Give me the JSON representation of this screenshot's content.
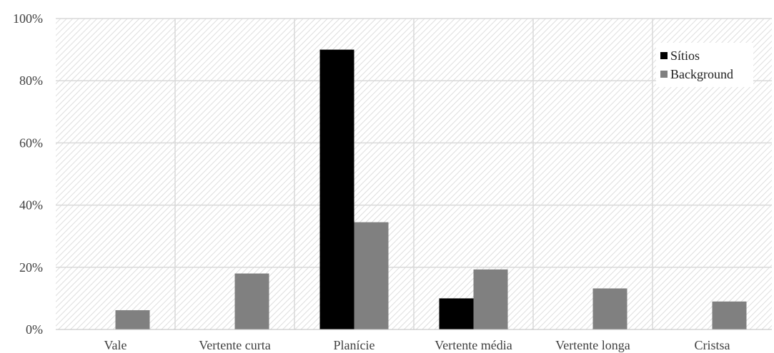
{
  "chart_data": {
    "type": "bar",
    "categories": [
      "Vale",
      "Vertente curta",
      "Planície",
      "Vertente média",
      "Vertente longa",
      "Cristsa"
    ],
    "series": [
      {
        "name": "Sítios",
        "values": [
          0,
          0,
          90,
          10,
          0,
          0
        ],
        "color": "#000000"
      },
      {
        "name": "Background",
        "values": [
          6.2,
          18,
          34.5,
          19.3,
          13.2,
          9.0
        ],
        "color": "#808080"
      }
    ],
    "yticks": [
      "0%",
      "20%",
      "40%",
      "60%",
      "80%",
      "100%"
    ],
    "ylim": [
      0,
      100
    ],
    "grid": true,
    "legend_position": "top-right"
  }
}
